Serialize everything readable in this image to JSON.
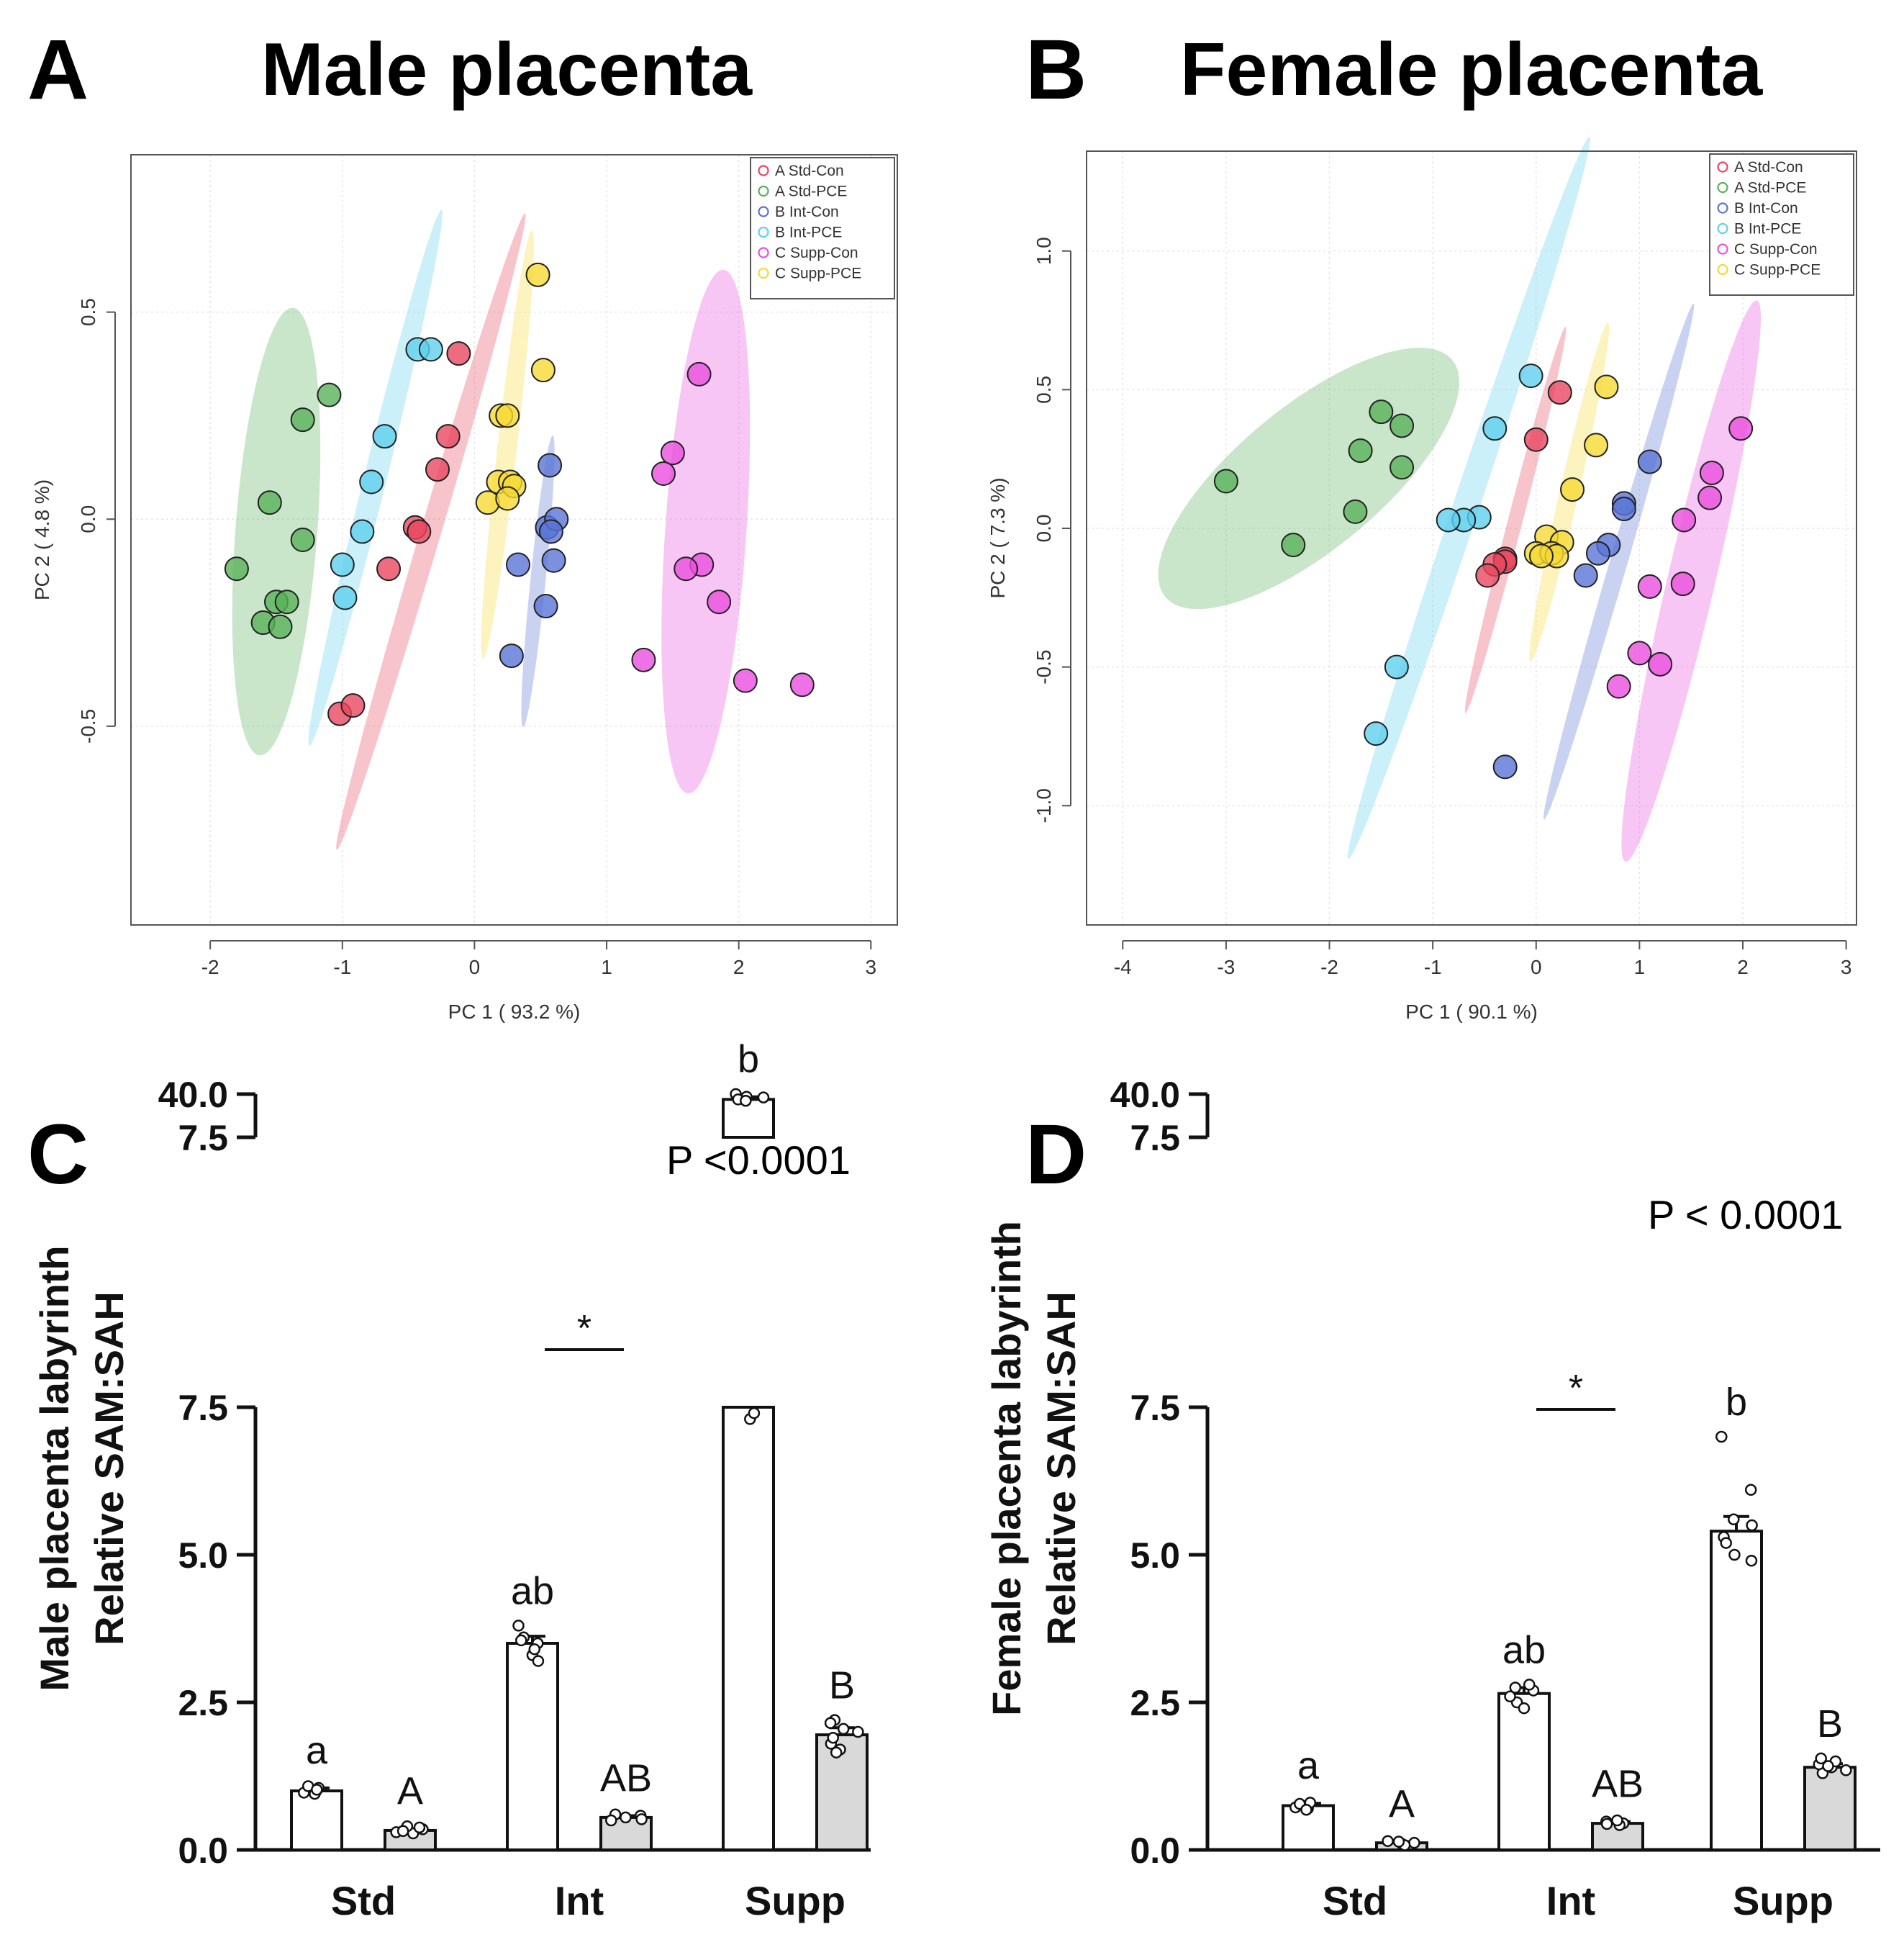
{
  "panels": {
    "A": {
      "letter": "A",
      "title": "Male placenta"
    },
    "B": {
      "letter": "B",
      "title": "Female placenta"
    },
    "C": {
      "letter": "C",
      "pvalue": "P <0.0001"
    },
    "D": {
      "letter": "D",
      "pvalue": "P < 0.0001"
    }
  },
  "colors": {
    "A Std-Con": "#e8475f",
    "A Std-PCE": "#59b25a",
    "B Int-Con": "#5a74d6",
    "B Int-PCE": "#5fd0ec",
    "C Supp-Con": "#ea4fdf",
    "C Supp-PCE": "#f5d935",
    "bar_con_fill": "#ffffff",
    "bar_pce_fill": "#d9d9d9"
  },
  "chart_data": [
    {
      "type": "scatter",
      "panel": "A",
      "title": "Male placenta",
      "xlabel": "PC 1 ( 93.2 %)",
      "ylabel": "PC 2 ( 4.8 %)",
      "xlim": [
        -2.6,
        3.2
      ],
      "ylim": [
        -0.98,
        0.88
      ],
      "xticks": [
        "-2",
        "-1",
        "0",
        "1",
        "2",
        "3"
      ],
      "xtick_values": [
        -2,
        -1,
        0,
        1,
        2,
        3
      ],
      "yticks": [
        "-0.5",
        "0.0",
        "0.5"
      ],
      "ytick_values": [
        -0.5,
        0,
        0.5
      ],
      "legend": [
        "A Std-Con",
        "A Std-PCE",
        "B Int-Con",
        "B Int-PCE",
        "C Supp-Con",
        "C Supp-PCE"
      ],
      "legend_position": "top-right",
      "ellipses": [
        {
          "group": "A Std-PCE",
          "center": [
            -1.5,
            -0.03
          ],
          "semi_major": 0.56,
          "semi_minor": 0.3,
          "angle_deg": 72
        },
        {
          "group": "B Int-PCE",
          "center": [
            -0.75,
            0.1
          ],
          "semi_major": 0.82,
          "semi_minor": 0.07,
          "angle_deg": 52
        },
        {
          "group": "A Std-Con",
          "center": [
            -0.33,
            -0.03
          ],
          "semi_major": 1.05,
          "semi_minor": 0.06,
          "angle_deg": 47
        },
        {
          "group": "C Supp-PCE",
          "center": [
            0.25,
            0.18
          ],
          "semi_major": 0.55,
          "semi_minor": 0.07,
          "angle_deg": 70
        },
        {
          "group": "B Int-Con",
          "center": [
            0.48,
            -0.15
          ],
          "semi_major": 0.37,
          "semi_minor": 0.055,
          "angle_deg": 72
        },
        {
          "group": "C Supp-Con",
          "center": [
            1.75,
            -0.03
          ],
          "semi_major": 0.65,
          "semi_minor": 0.3,
          "angle_deg": 75
        }
      ],
      "series": [
        {
          "name": "A Std-Con",
          "points": [
            [
              -0.12,
              0.4
            ],
            [
              -0.2,
              0.2
            ],
            [
              -0.28,
              0.12
            ],
            [
              -0.45,
              -0.02
            ],
            [
              -0.42,
              -0.03
            ],
            [
              -0.65,
              -0.12
            ],
            [
              -1.02,
              -0.47
            ],
            [
              -0.92,
              -0.45
            ]
          ]
        },
        {
          "name": "A Std-PCE",
          "points": [
            [
              -1.1,
              0.3
            ],
            [
              -1.3,
              0.24
            ],
            [
              -1.55,
              0.04
            ],
            [
              -1.3,
              -0.05
            ],
            [
              -1.8,
              -0.12
            ],
            [
              -1.5,
              -0.2
            ],
            [
              -1.42,
              -0.2
            ],
            [
              -1.6,
              -0.25
            ],
            [
              -1.47,
              -0.26
            ]
          ]
        },
        {
          "name": "B Int-Con",
          "points": [
            [
              0.57,
              0.13
            ],
            [
              0.55,
              -0.02
            ],
            [
              0.62,
              0.0
            ],
            [
              0.58,
              -0.03
            ],
            [
              0.33,
              -0.11
            ],
            [
              0.6,
              -0.1
            ],
            [
              0.54,
              -0.21
            ],
            [
              0.28,
              -0.33
            ]
          ]
        },
        {
          "name": "B Int-PCE",
          "points": [
            [
              -0.43,
              0.41
            ],
            [
              -0.33,
              0.41
            ],
            [
              -0.68,
              0.2
            ],
            [
              -0.78,
              0.09
            ],
            [
              -0.85,
              -0.03
            ],
            [
              -1.0,
              -0.11
            ],
            [
              -0.98,
              -0.19
            ]
          ]
        },
        {
          "name": "C Supp-Con",
          "points": [
            [
              1.7,
              0.35
            ],
            [
              1.5,
              0.16
            ],
            [
              1.43,
              0.11
            ],
            [
              1.72,
              -0.11
            ],
            [
              1.6,
              -0.12
            ],
            [
              1.85,
              -0.2
            ],
            [
              1.28,
              -0.34
            ],
            [
              2.05,
              -0.39
            ],
            [
              2.48,
              -0.4
            ]
          ]
        },
        {
          "name": "C Supp-PCE",
          "points": [
            [
              0.48,
              0.59
            ],
            [
              0.52,
              0.36
            ],
            [
              0.2,
              0.25
            ],
            [
              0.25,
              0.25
            ],
            [
              0.18,
              0.09
            ],
            [
              0.27,
              0.09
            ],
            [
              0.3,
              0.08
            ],
            [
              0.1,
              0.04
            ],
            [
              0.25,
              0.05
            ]
          ]
        }
      ]
    },
    {
      "type": "scatter",
      "panel": "B",
      "title": "Female placenta",
      "xlabel": "PC 1 ( 90.1 %)",
      "ylabel": "PC 2 ( 7.3 %)",
      "xlim": [
        -4.35,
        3.1
      ],
      "ylim": [
        -1.43,
        1.36
      ],
      "xticks": [
        "-4",
        "-3",
        "-2",
        "-1",
        "0",
        "1",
        "2",
        "3"
      ],
      "xtick_values": [
        -4,
        -3,
        -2,
        -1,
        0,
        1,
        2,
        3
      ],
      "yticks": [
        "-1.0",
        "-0.5",
        "0.0",
        "0.5",
        "1.0"
      ],
      "ytick_values": [
        -1,
        -0.5,
        0,
        0.5,
        1
      ],
      "legend": [
        "A Std-Con",
        "A Std-PCE",
        "B Int-Con",
        "B Int-PCE",
        "C Supp-Con",
        "C Supp-PCE"
      ],
      "legend_position": "top-right",
      "ellipses": [
        {
          "group": "A Std-PCE",
          "center": [
            -2.2,
            0.18
          ],
          "semi_major": 1.5,
          "semi_minor": 0.31,
          "angle_deg": 14
        },
        {
          "group": "B Int-PCE",
          "center": [
            -0.65,
            0.11
          ],
          "semi_major": 1.75,
          "semi_minor": 0.1,
          "angle_deg": 48
        },
        {
          "group": "A Std-Con",
          "center": [
            -0.2,
            0.03
          ],
          "semi_major": 0.85,
          "semi_minor": 0.06,
          "angle_deg": 55
        },
        {
          "group": "C Supp-PCE",
          "center": [
            0.32,
            0.13
          ],
          "semi_major": 0.72,
          "semi_minor": 0.08,
          "angle_deg": 58
        },
        {
          "group": "B Int-Con",
          "center": [
            0.8,
            -0.12
          ],
          "semi_major": 1.18,
          "semi_minor": 0.07,
          "angle_deg": 52
        },
        {
          "group": "C Supp-Con",
          "center": [
            1.5,
            -0.19
          ],
          "semi_major": 1.2,
          "semi_minor": 0.2,
          "angle_deg": 57
        }
      ],
      "series": [
        {
          "name": "A Std-Con",
          "points": [
            [
              0.23,
              0.49
            ],
            [
              0.0,
              0.32
            ],
            [
              -0.3,
              -0.11
            ],
            [
              -0.3,
              -0.12
            ],
            [
              -0.4,
              -0.13
            ],
            [
              -0.47,
              -0.17
            ]
          ]
        },
        {
          "name": "A Std-PCE",
          "points": [
            [
              -1.5,
              0.42
            ],
            [
              -1.3,
              0.37
            ],
            [
              -1.7,
              0.28
            ],
            [
              -1.3,
              0.22
            ],
            [
              -3.0,
              0.17
            ],
            [
              -1.75,
              0.06
            ],
            [
              -2.35,
              -0.06
            ]
          ]
        },
        {
          "name": "B Int-Con",
          "points": [
            [
              1.1,
              0.24
            ],
            [
              0.85,
              0.09
            ],
            [
              0.85,
              0.07
            ],
            [
              0.7,
              -0.06
            ],
            [
              0.6,
              -0.09
            ],
            [
              0.48,
              -0.17
            ],
            [
              -0.3,
              -0.86
            ]
          ]
        },
        {
          "name": "B Int-PCE",
          "points": [
            [
              -0.05,
              0.55
            ],
            [
              -0.4,
              0.36
            ],
            [
              -0.55,
              0.04
            ],
            [
              -0.7,
              0.03
            ],
            [
              -0.85,
              0.03
            ],
            [
              -1.35,
              -0.5
            ],
            [
              -1.55,
              -0.74
            ]
          ]
        },
        {
          "name": "C Supp-Con",
          "points": [
            [
              1.98,
              0.36
            ],
            [
              1.7,
              0.2
            ],
            [
              1.68,
              0.11
            ],
            [
              1.43,
              0.03
            ],
            [
              1.42,
              -0.2
            ],
            [
              1.1,
              -0.21
            ],
            [
              1.0,
              -0.45
            ],
            [
              1.2,
              -0.49
            ],
            [
              0.8,
              -0.57
            ]
          ]
        },
        {
          "name": "C Supp-PCE",
          "points": [
            [
              0.68,
              0.51
            ],
            [
              0.58,
              0.3
            ],
            [
              0.35,
              0.14
            ],
            [
              0.1,
              -0.03
            ],
            [
              0.25,
              -0.05
            ],
            [
              0.0,
              -0.09
            ],
            [
              0.15,
              -0.09
            ],
            [
              0.2,
              -0.1
            ],
            [
              0.05,
              -0.1
            ]
          ]
        }
      ]
    },
    {
      "type": "bar",
      "panel": "C",
      "ylabel": [
        "Male placenta labyrinth",
        "Relative SAM:SAH"
      ],
      "categories": [
        "Std",
        "Int",
        "Supp"
      ],
      "series": [
        {
          "name": "Con",
          "values": [
            1.0,
            3.5,
            36.0
          ],
          "sem": [
            0.05,
            0.12,
            2.0
          ],
          "letters": [
            "a",
            "ab",
            "b"
          ]
        },
        {
          "name": "PCE",
          "values": [
            0.33,
            0.55,
            1.95
          ],
          "sem": [
            0.03,
            0.03,
            0.12
          ],
          "letters": [
            "A",
            "AB",
            "B"
          ]
        }
      ],
      "points": {
        "Con": [
          [
            1.0,
            1.05,
            0.97,
            1.08,
            0.95,
            1.02
          ],
          [
            3.5,
            3.8,
            3.3,
            3.6,
            3.2,
            3.55,
            3.4
          ],
          [
            40.0,
            38.0,
            37.5,
            36.0,
            35.0,
            7.3,
            7.4
          ]
        ],
        "PCE": [
          [
            0.3,
            0.35,
            0.28,
            0.4,
            0.32,
            0.38
          ],
          [
            0.55,
            0.6,
            0.5,
            0.58,
            0.52
          ],
          [
            2.2,
            1.8,
            2.0,
            1.7,
            1.9,
            2.05,
            1.65,
            2.15
          ]
        ]
      },
      "y_axis_lower": {
        "ticks": [
          "0.0",
          "2.5",
          "5.0",
          "7.5"
        ],
        "tick_values": [
          0,
          2.5,
          5,
          7.5
        ],
        "range": [
          0,
          7.5
        ]
      },
      "y_axis_upper": {
        "ticks": [
          "7.5",
          "40.0"
        ],
        "tick_values": [
          7.5,
          40
        ],
        "range": [
          7.5,
          40
        ]
      },
      "significance": "*",
      "significance_between": "Int Con vs Int PCE"
    },
    {
      "type": "bar",
      "panel": "D",
      "ylabel": [
        "Female placenta labyrinth",
        "Relative SAM:SAH"
      ],
      "categories": [
        "Std",
        "Int",
        "Supp"
      ],
      "series": [
        {
          "name": "Con",
          "values": [
            0.75,
            2.65,
            5.4
          ],
          "sem": [
            0.04,
            0.1,
            0.25
          ],
          "letters": [
            "a",
            "ab",
            "b"
          ]
        },
        {
          "name": "PCE",
          "values": [
            0.12,
            0.45,
            1.4
          ],
          "sem": [
            0.02,
            0.03,
            0.06
          ],
          "letters": [
            "A",
            "AB",
            "B"
          ]
        }
      ],
      "points": {
        "Con": [
          [
            0.7,
            0.8,
            0.72,
            0.78,
            0.68
          ],
          [
            2.5,
            2.7,
            2.8,
            2.6,
            2.4,
            2.75
          ],
          [
            7.0,
            6.1,
            5.5,
            5.3,
            5.0,
            4.9,
            5.2,
            5.6
          ]
        ],
        "PCE": [
          [
            0.1,
            0.15,
            0.12,
            0.08,
            0.14
          ],
          [
            0.45,
            0.48,
            0.42,
            0.5,
            0.44
          ],
          [
            1.4,
            1.5,
            1.3,
            1.45,
            1.35,
            1.42,
            1.55
          ]
        ]
      },
      "y_axis_lower": {
        "ticks": [
          "0.0",
          "2.5",
          "5.0",
          "7.5"
        ],
        "tick_values": [
          0,
          2.5,
          5,
          7.5
        ],
        "range": [
          0,
          7.5
        ]
      },
      "y_axis_upper": {
        "ticks": [
          "7.5",
          "40.0"
        ],
        "tick_values": [
          7.5,
          40
        ],
        "range": [
          7.5,
          40
        ]
      },
      "significance": "*",
      "significance_between": "Int Con vs Int PCE"
    }
  ]
}
